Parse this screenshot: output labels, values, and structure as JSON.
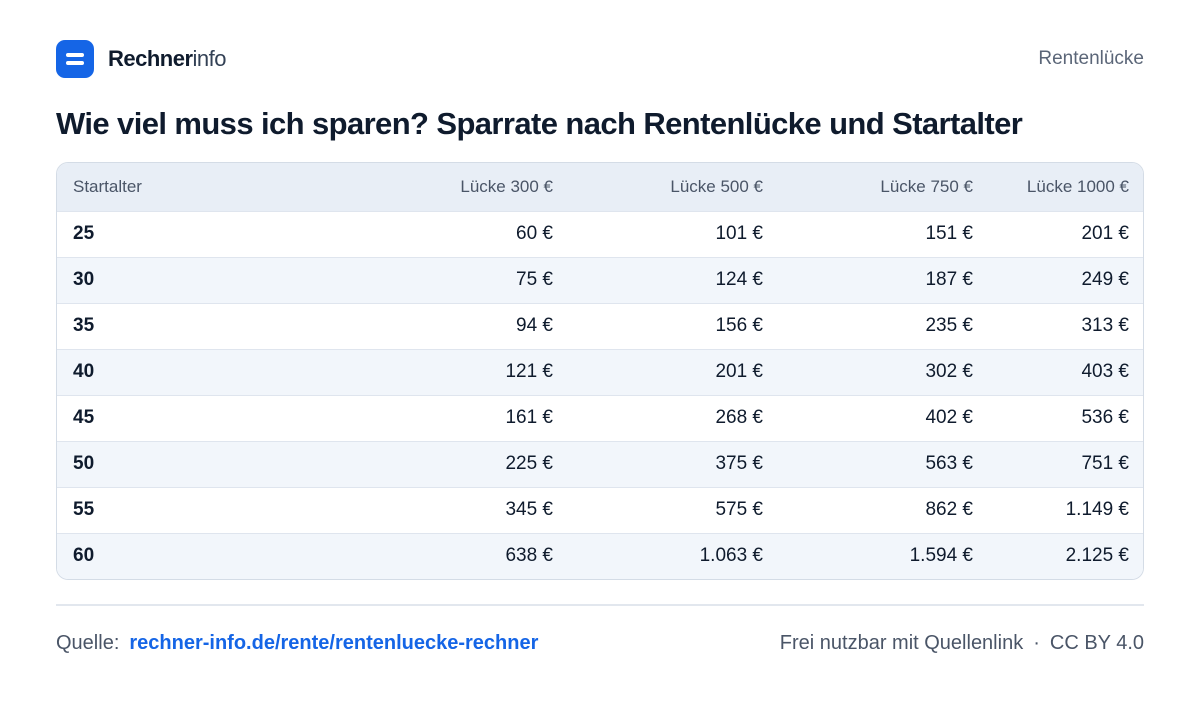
{
  "header": {
    "brand_strong": "Rechner",
    "brand_light": "info",
    "section": "Rentenlücke"
  },
  "title": "Wie viel muss ich sparen? Sparrate nach Rentenlücke und Startalter",
  "table": {
    "columns": [
      "Startalter",
      "Lücke 300 €",
      "Lücke 500 €",
      "Lücke 750 €",
      "Lücke 1000 €"
    ],
    "rows": [
      [
        "25",
        "60 €",
        "101 €",
        "151 €",
        "201 €"
      ],
      [
        "30",
        "75 €",
        "124 €",
        "187 €",
        "249 €"
      ],
      [
        "35",
        "94 €",
        "156 €",
        "235 €",
        "313 €"
      ],
      [
        "40",
        "121 €",
        "201 €",
        "302 €",
        "403 €"
      ],
      [
        "45",
        "161 €",
        "268 €",
        "402 €",
        "536 €"
      ],
      [
        "50",
        "225 €",
        "375 €",
        "563 €",
        "751 €"
      ],
      [
        "55",
        "345 €",
        "575 €",
        "862 €",
        "1.149 €"
      ],
      [
        "60",
        "638 €",
        "1.063 €",
        "1.594 €",
        "2.125 €"
      ]
    ]
  },
  "footer": {
    "source_label": "Quelle:",
    "source_link": "rechner-info.de/rente/rentenluecke-rechner",
    "license_text": "Frei nutzbar mit Quellenlink",
    "separator": "·",
    "license": "CC BY 4.0"
  },
  "colors": {
    "brand": "#1565e6",
    "text": "#0f1b2d",
    "header_bg": "#e8eef6",
    "alt_row_bg": "#f2f6fb"
  }
}
